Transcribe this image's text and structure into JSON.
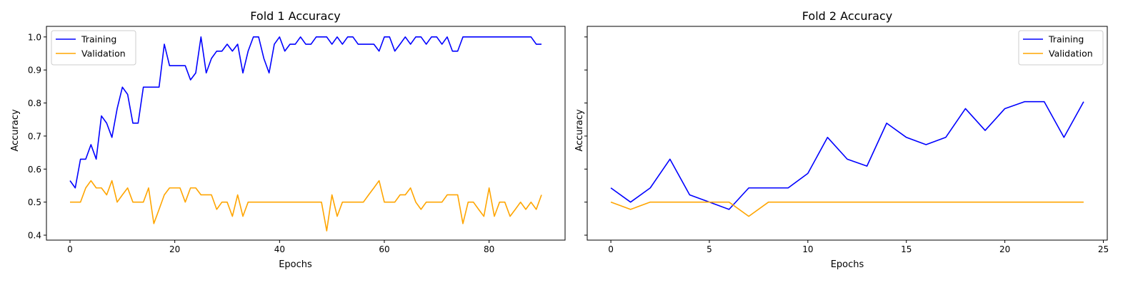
{
  "chart_data": [
    {
      "type": "line",
      "title": "Fold 1 Accuracy",
      "xlabel": "Epochs",
      "ylabel": "Accuracy",
      "xlim": [
        -4.5,
        94.5
      ],
      "ylim": [
        0.385,
        1.032
      ],
      "xticks": [
        0,
        20,
        40,
        60,
        80
      ],
      "xtick_labels": [
        "0",
        "20",
        "40",
        "60",
        "80"
      ],
      "yticks": [
        0.4,
        0.5,
        0.6,
        0.7,
        0.8,
        0.9,
        1.0
      ],
      "ytick_labels": [
        "0.4",
        "0.5",
        "0.6",
        "0.7",
        "0.8",
        "0.9",
        "1.0"
      ],
      "legend_position": "upper-left",
      "series": [
        {
          "name": "Training",
          "color": "#0000ff",
          "values": [
            0.565,
            0.543,
            0.63,
            0.63,
            0.674,
            0.63,
            0.761,
            0.739,
            0.696,
            0.783,
            0.848,
            0.826,
            0.739,
            0.739,
            0.848,
            0.848,
            0.848,
            0.848,
            0.978,
            0.913,
            0.913,
            0.913,
            0.913,
            0.87,
            0.891,
            1.0,
            0.891,
            0.935,
            0.957,
            0.957,
            0.978,
            0.957,
            0.978,
            0.891,
            0.957,
            1.0,
            1.0,
            0.935,
            0.891,
            0.978,
            1.0,
            0.957,
            0.978,
            0.978,
            1.0,
            0.978,
            0.978,
            1.0,
            1.0,
            1.0,
            0.978,
            1.0,
            0.978,
            1.0,
            1.0,
            0.978,
            0.978,
            0.978,
            0.978,
            0.957,
            1.0,
            1.0,
            0.957,
            0.978,
            1.0,
            0.978,
            1.0,
            1.0,
            0.978,
            1.0,
            1.0,
            0.978,
            1.0,
            0.957,
            0.957,
            1.0,
            1.0,
            1.0,
            1.0,
            1.0,
            1.0,
            1.0,
            1.0,
            1.0,
            1.0,
            1.0,
            1.0,
            1.0,
            1.0,
            0.978,
            0.978
          ]
        },
        {
          "name": "Validation",
          "color": "#ffa500",
          "values": [
            0.5,
            0.5,
            0.5,
            0.543,
            0.565,
            0.543,
            0.543,
            0.522,
            0.565,
            0.5,
            0.522,
            0.543,
            0.5,
            0.5,
            0.5,
            0.543,
            0.435,
            0.478,
            0.522,
            0.543,
            0.543,
            0.543,
            0.5,
            0.543,
            0.543,
            0.522,
            0.522,
            0.522,
            0.478,
            0.5,
            0.5,
            0.457,
            0.522,
            0.457,
            0.5,
            0.5,
            0.5,
            0.5,
            0.5,
            0.5,
            0.5,
            0.5,
            0.5,
            0.5,
            0.5,
            0.5,
            0.5,
            0.5,
            0.5,
            0.413,
            0.522,
            0.457,
            0.5,
            0.5,
            0.5,
            0.5,
            0.5,
            0.522,
            0.543,
            0.565,
            0.5,
            0.5,
            0.5,
            0.522,
            0.522,
            0.543,
            0.5,
            0.478,
            0.5,
            0.5,
            0.5,
            0.5,
            0.522,
            0.522,
            0.522,
            0.435,
            0.5,
            0.5,
            0.478,
            0.457,
            0.543,
            0.457,
            0.5,
            0.5,
            0.457,
            0.478,
            0.5,
            0.478,
            0.5,
            0.478,
            0.522
          ]
        }
      ]
    },
    {
      "type": "line",
      "title": "Fold 2 Accuracy",
      "xlabel": "Epochs",
      "ylabel": "Accuracy",
      "xlim": [
        -1.2,
        25.2
      ],
      "ylim": [
        0.385,
        1.032
      ],
      "xticks": [
        0,
        5,
        10,
        15,
        20,
        25
      ],
      "xtick_labels": [
        "0",
        "5",
        "10",
        "15",
        "20",
        "25"
      ],
      "yticks": [
        0.4,
        0.5,
        0.6,
        0.7,
        0.8,
        0.9,
        1.0
      ],
      "ytick_labels": [
        "",
        "",
        "",
        "",
        "",
        "",
        ""
      ],
      "legend_position": "upper-right",
      "series": [
        {
          "name": "Training",
          "color": "#0000ff",
          "values": [
            0.543,
            0.5,
            0.543,
            0.63,
            0.522,
            0.5,
            0.478,
            0.543,
            0.543,
            0.543,
            0.587,
            0.696,
            0.63,
            0.609,
            0.739,
            0.696,
            0.674,
            0.696,
            0.783,
            0.717,
            0.783,
            0.804,
            0.804,
            0.696,
            0.804
          ]
        },
        {
          "name": "Validation",
          "color": "#ffa500",
          "values": [
            0.5,
            0.478,
            0.5,
            0.5,
            0.5,
            0.5,
            0.5,
            0.457,
            0.5,
            0.5,
            0.5,
            0.5,
            0.5,
            0.5,
            0.5,
            0.5,
            0.5,
            0.5,
            0.5,
            0.5,
            0.5,
            0.5,
            0.5,
            0.5,
            0.5
          ]
        }
      ]
    }
  ]
}
